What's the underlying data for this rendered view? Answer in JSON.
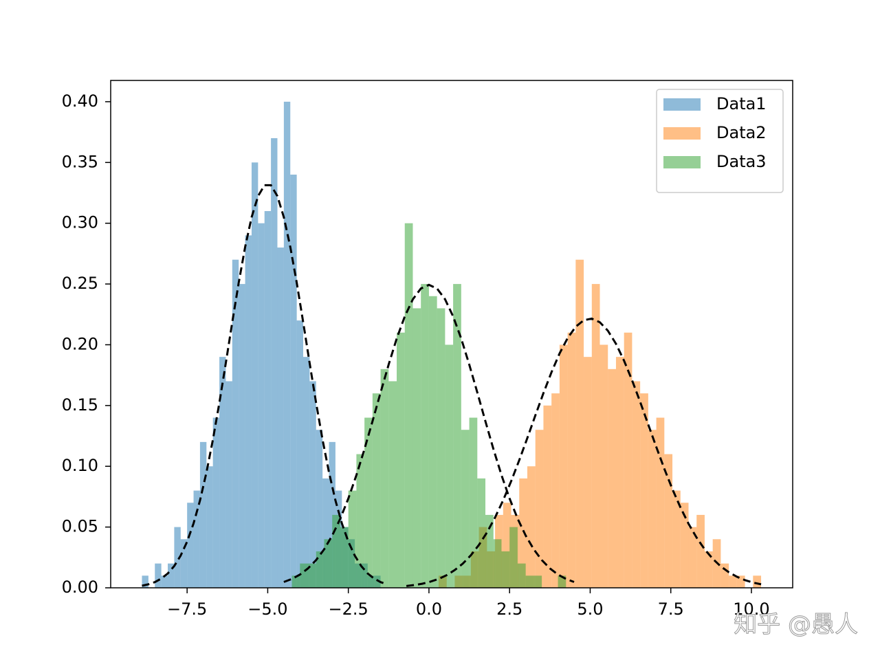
{
  "chart_data": {
    "type": "histogram",
    "xlim": [
      -9.87,
      11.28
    ],
    "ylim": [
      0,
      0.4175
    ],
    "xticks": [
      {
        "value": -7.5,
        "label": "−7.5"
      },
      {
        "value": -5.0,
        "label": "−5.0"
      },
      {
        "value": -2.5,
        "label": "−2.5"
      },
      {
        "value": 0.0,
        "label": "0.0"
      },
      2.5,
      {
        "value": 5.0,
        "label": "5.0"
      },
      7.5,
      {
        "value": 10.0,
        "label": "10.0"
      }
    ],
    "yticks": [
      {
        "value": 0,
        "label": "0.00"
      },
      0.05,
      {
        "value": 0.1,
        "label": "0.10"
      },
      0.15,
      {
        "value": 0.2,
        "label": "0.20"
      },
      0.25,
      {
        "value": 0.3,
        "label": "0.30"
      },
      0.35,
      {
        "value": 0.4,
        "label": "0.40"
      }
    ],
    "alpha": 0.5,
    "fit_color": "#000000",
    "legend": "upper right",
    "watermark": "知乎 @愚人",
    "series": [
      {
        "name": "Data1",
        "color": "#1f77b4",
        "bins": [
          -8.9,
          -8.7,
          -8.5,
          -8.3,
          -8.1,
          -7.9,
          -7.7,
          -7.5,
          -7.3,
          -7.1,
          -6.9,
          -6.7,
          -6.5,
          -6.3,
          -6.1,
          -5.9,
          -5.7,
          -5.5,
          -5.3,
          -5.1,
          -4.9,
          -4.7,
          -4.5,
          -4.3,
          -4.1,
          -3.9,
          -3.7,
          -3.5,
          -3.3,
          -3.1,
          -2.9,
          -2.7,
          -2.5,
          -2.3,
          -2.1,
          -1.9,
          -1.7,
          -1.5,
          -1.3
        ],
        "values": [
          0.01,
          0.0,
          0.02,
          0.01,
          0.02,
          0.05,
          0.04,
          0.07,
          0.08,
          0.12,
          0.1,
          0.14,
          0.19,
          0.17,
          0.27,
          0.25,
          0.29,
          0.35,
          0.3,
          0.31,
          0.37,
          0.28,
          0.4,
          0.34,
          0.22,
          0.19,
          0.17,
          0.13,
          0.09,
          0.12,
          0.08,
          0.05,
          0.04,
          0.02,
          0.02,
          0.01,
          0.01,
          0.0
        ],
        "fit_values": [
          0.0017,
          0.0029,
          0.0047,
          0.0076,
          0.0118,
          0.0179,
          0.0265,
          0.038,
          0.053,
          0.0719,
          0.095,
          0.1219,
          0.1522,
          0.1849,
          0.2185,
          0.251,
          0.2805,
          0.3049,
          0.3223,
          0.3313,
          0.3313,
          0.3223,
          0.3049,
          0.2805,
          0.251,
          0.2185,
          0.1849,
          0.1522,
          0.1219,
          0.095,
          0.0719,
          0.053,
          0.038,
          0.0265,
          0.0179,
          0.0118,
          0.0076,
          0.0047,
          0.0029
        ]
      },
      {
        "name": "Data2",
        "color": "#ff7f0e",
        "bins": [
          -0.7,
          -0.45,
          -0.2,
          0.05,
          0.3,
          0.55,
          0.8,
          1.05,
          1.3,
          1.55,
          1.8,
          2.05,
          2.3,
          2.55,
          2.8,
          3.05,
          3.3,
          3.55,
          3.8,
          4.05,
          4.3,
          4.55,
          4.8,
          5.05,
          5.3,
          5.55,
          5.8,
          6.05,
          6.3,
          6.55,
          6.8,
          7.05,
          7.3,
          7.55,
          7.8,
          8.05,
          8.3,
          8.55,
          8.8,
          9.05,
          9.3,
          9.55,
          9.8,
          10.05,
          10.3
        ],
        "values": [
          0.0,
          0.0,
          0.0,
          0.0,
          0.01,
          0.0,
          0.01,
          0.01,
          0.03,
          0.05,
          0.03,
          0.06,
          0.07,
          0.06,
          0.09,
          0.1,
          0.13,
          0.15,
          0.16,
          0.2,
          0.21,
          0.27,
          0.19,
          0.25,
          0.2,
          0.18,
          0.19,
          0.21,
          0.17,
          0.16,
          0.13,
          0.14,
          0.11,
          0.08,
          0.07,
          0.05,
          0.06,
          0.03,
          0.04,
          0.02,
          0.01,
          0.01,
          0.0,
          0.01
        ],
        "fit_values": [
          0.0015,
          0.0023,
          0.0034,
          0.0051,
          0.0073,
          0.0104,
          0.0146,
          0.0199,
          0.0268,
          0.0353,
          0.0456,
          0.0579,
          0.072,
          0.0878,
          0.105,
          0.1232,
          0.1419,
          0.1602,
          0.1774,
          0.1928,
          0.2055,
          0.2148,
          0.2202,
          0.2215,
          0.2185,
          0.2115,
          0.2008,
          0.1869,
          0.1707,
          0.153,
          0.1344,
          0.1159,
          0.0979,
          0.0812,
          0.0661,
          0.0527,
          0.0413,
          0.0317,
          0.0239,
          0.0176,
          0.0128,
          0.0091,
          0.0063,
          0.0043,
          0.0029
        ]
      },
      {
        "name": "Data3",
        "color": "#2ca02c",
        "bins": [
          -4.5,
          -4.25,
          -4.0,
          -3.75,
          -3.5,
          -3.25,
          -3.0,
          -2.75,
          -2.5,
          -2.25,
          -2.0,
          -1.75,
          -1.5,
          -1.25,
          -1.0,
          -0.75,
          -0.5,
          -0.25,
          0.0,
          0.25,
          0.5,
          0.75,
          1.0,
          1.25,
          1.5,
          1.75,
          2.0,
          2.25,
          2.5,
          2.75,
          3.0,
          3.25,
          3.5,
          3.75,
          4.0,
          4.25,
          4.5
        ],
        "values": [
          0.0,
          0.01,
          0.02,
          0.02,
          0.03,
          0.04,
          0.06,
          0.05,
          0.08,
          0.11,
          0.14,
          0.16,
          0.18,
          0.17,
          0.21,
          0.3,
          0.23,
          0.25,
          0.24,
          0.23,
          0.2,
          0.25,
          0.13,
          0.14,
          0.09,
          0.06,
          0.04,
          0.03,
          0.05,
          0.02,
          0.01,
          0.01,
          0.0,
          0.0,
          0.01,
          0.0
        ],
        "fit_values": [
          0.0048,
          0.0073,
          0.0109,
          0.016,
          0.0228,
          0.0317,
          0.043,
          0.0569,
          0.0735,
          0.0927,
          0.1141,
          0.1371,
          0.1607,
          0.1837,
          0.2051,
          0.2233,
          0.2374,
          0.2463,
          0.2493,
          0.2463,
          0.2374,
          0.2233,
          0.2051,
          0.1837,
          0.1607,
          0.1371,
          0.1141,
          0.0927,
          0.0735,
          0.0569,
          0.043,
          0.0317,
          0.0228,
          0.016,
          0.0109,
          0.0073,
          0.0048
        ]
      }
    ]
  }
}
